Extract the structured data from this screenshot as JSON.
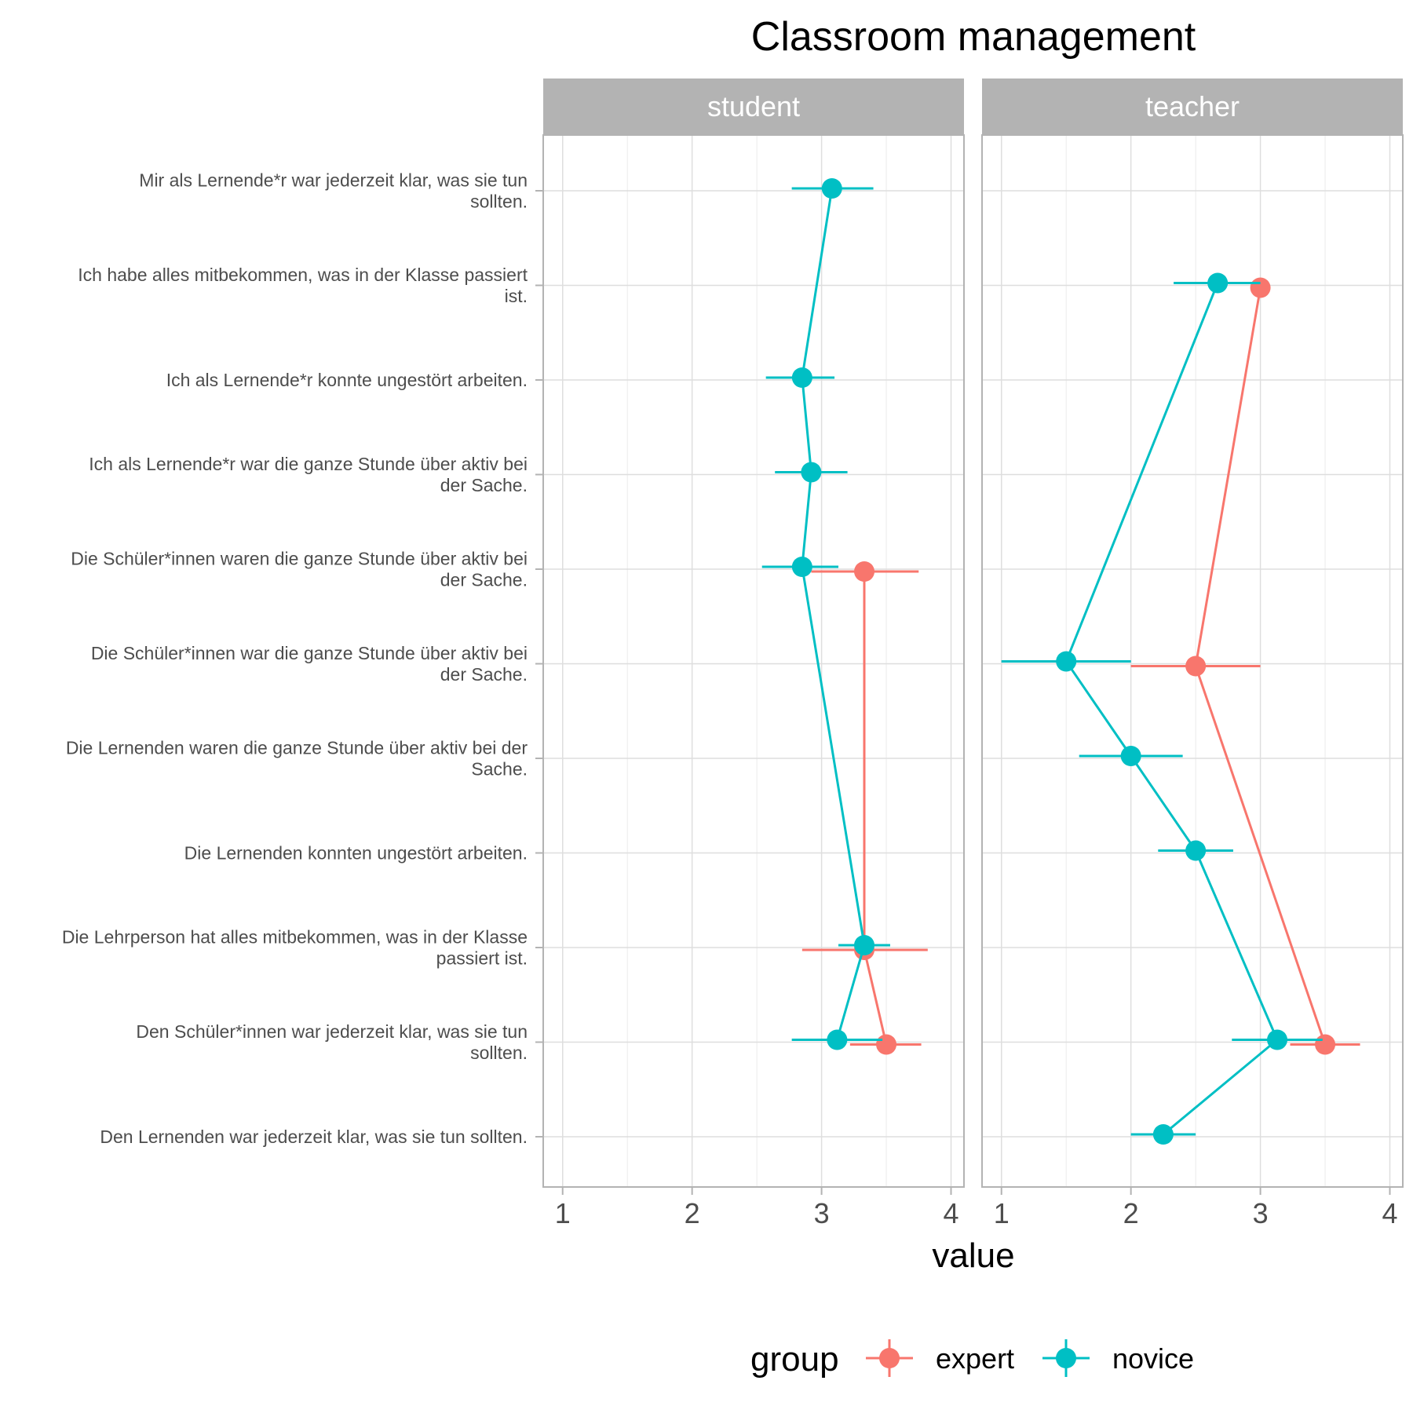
{
  "chart_data": {
    "type": "line",
    "title": "Classroom management",
    "xlabel": "value",
    "ylabel": "",
    "xlim": [
      0.85,
      4.1
    ],
    "xticks": [
      1,
      2,
      3,
      4
    ],
    "grid": true,
    "legend_position": "bottom",
    "legend_title": "group",
    "colors": {
      "expert": "#F8766D",
      "novice": "#00BFC4",
      "strip": "#b3b3b3",
      "strip_text": "#ffffff"
    },
    "categories": [
      [
        "Mir als Lernende*r war jederzeit klar, was sie tun",
        "sollten."
      ],
      [
        "Ich habe alles mitbekommen, was in der Klasse passiert",
        "ist."
      ],
      [
        "Ich als Lernende*r konnte ungestört arbeiten."
      ],
      [
        "Ich als Lernende*r war die ganze Stunde über aktiv bei",
        "der Sache."
      ],
      [
        "Die Schüler*innen waren die ganze Stunde über aktiv bei",
        "der Sache."
      ],
      [
        "Die Schüler*innen war die ganze Stunde über aktiv bei",
        "der Sache."
      ],
      [
        "Die Lernenden waren die ganze Stunde über aktiv bei der",
        "Sache."
      ],
      [
        "Die Lernenden konnten ungestört arbeiten."
      ],
      [
        "Die Lehrperson hat alles mitbekommen, was in der Klasse",
        "passiert ist."
      ],
      [
        "Den Schüler*innen war jederzeit klar, was sie tun",
        "sollten."
      ],
      [
        "Den Lernenden war jederzeit klar, was sie tun sollten."
      ]
    ],
    "panels": [
      {
        "name": "student",
        "series": [
          {
            "name": "expert",
            "points": [
              {
                "category": 4,
                "value": 3.33,
                "lo": 2.92,
                "hi": 3.75
              },
              {
                "category": 8,
                "value": 3.33,
                "lo": 2.85,
                "hi": 3.82
              },
              {
                "category": 9,
                "value": 3.5,
                "lo": 3.22,
                "hi": 3.77
              }
            ]
          },
          {
            "name": "novice",
            "points": [
              {
                "category": 0,
                "value": 3.08,
                "lo": 2.77,
                "hi": 3.4
              },
              {
                "category": 2,
                "value": 2.85,
                "lo": 2.57,
                "hi": 3.1
              },
              {
                "category": 3,
                "value": 2.92,
                "lo": 2.64,
                "hi": 3.2
              },
              {
                "category": 4,
                "value": 2.85,
                "lo": 2.54,
                "hi": 3.13
              },
              {
                "category": 8,
                "value": 3.33,
                "lo": 3.13,
                "hi": 3.53
              },
              {
                "category": 9,
                "value": 3.12,
                "lo": 2.77,
                "hi": 3.47
              }
            ]
          }
        ]
      },
      {
        "name": "teacher",
        "series": [
          {
            "name": "expert",
            "points": [
              {
                "category": 1,
                "value": 3.0,
                "lo": 3.0,
                "hi": 3.0
              },
              {
                "category": 5,
                "value": 2.5,
                "lo": 2.0,
                "hi": 3.0
              },
              {
                "category": 9,
                "value": 3.5,
                "lo": 3.23,
                "hi": 3.77
              }
            ]
          },
          {
            "name": "novice",
            "points": [
              {
                "category": 1,
                "value": 2.67,
                "lo": 2.33,
                "hi": 3.0
              },
              {
                "category": 5,
                "value": 1.5,
                "lo": 1.0,
                "hi": 2.0
              },
              {
                "category": 6,
                "value": 2.0,
                "lo": 1.6,
                "hi": 2.4
              },
              {
                "category": 7,
                "value": 2.5,
                "lo": 2.21,
                "hi": 2.79
              },
              {
                "category": 9,
                "value": 3.13,
                "lo": 2.78,
                "hi": 3.48
              },
              {
                "category": 10,
                "value": 2.25,
                "lo": 2.0,
                "hi": 2.5
              }
            ]
          }
        ]
      }
    ]
  }
}
